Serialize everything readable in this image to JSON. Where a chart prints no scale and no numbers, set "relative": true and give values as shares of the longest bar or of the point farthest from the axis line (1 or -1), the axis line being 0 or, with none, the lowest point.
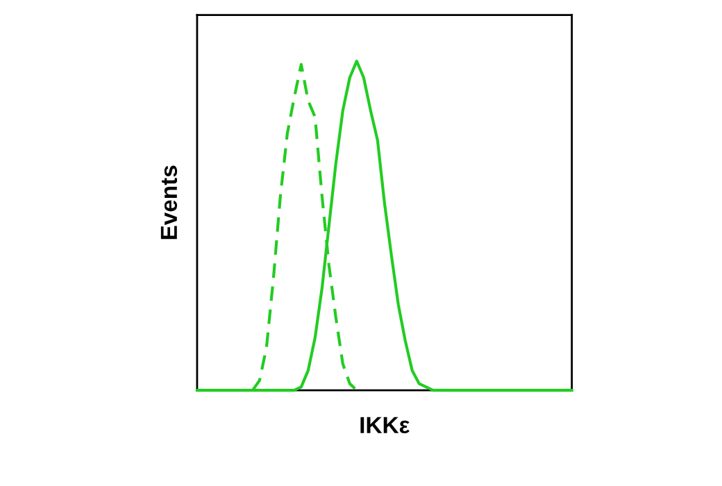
{
  "chart_data": {
    "type": "line",
    "relative": true,
    "xlabel": "IKKε",
    "ylabel": "Events",
    "grid": false,
    "legend": false,
    "categories": [
      null,
      null,
      null,
      null,
      null,
      null,
      null,
      null,
      null,
      null,
      null,
      null,
      null,
      null,
      null,
      null,
      null,
      null,
      null,
      null,
      null,
      null,
      null,
      null,
      null,
      null,
      null,
      null,
      null,
      null,
      null,
      null,
      null,
      null,
      null,
      null,
      null,
      null,
      null,
      null,
      null,
      null,
      null,
      null,
      null,
      null,
      null,
      null,
      null,
      null,
      null,
      null,
      null,
      null,
      null
    ],
    "series": [
      {
        "color": "#22cc22",
        "line_style": "dashed",
        "values": [
          null,
          null,
          null,
          null,
          null,
          null,
          null,
          null,
          0,
          0.03,
          0.13,
          0.34,
          0.59,
          0.78,
          0.89,
          0.99,
          0.88,
          0.83,
          0.59,
          0.38,
          0.22,
          0.08,
          0.02,
          0,
          null,
          null,
          null,
          null,
          null,
          null,
          null,
          null,
          null,
          null,
          null,
          null,
          null,
          null,
          null,
          null,
          null,
          null,
          null,
          null,
          null,
          null,
          null,
          null,
          null,
          null,
          null,
          null,
          null,
          null,
          null
        ]
      },
      {
        "color": "#22cc22",
        "line_style": "solid",
        "values": [
          0,
          0,
          0,
          0,
          0,
          0,
          0,
          0,
          0,
          0,
          0,
          0,
          0,
          0,
          0,
          0.01,
          0.06,
          0.16,
          0.31,
          0.5,
          0.69,
          0.85,
          0.95,
          1.0,
          0.95,
          0.85,
          0.76,
          0.57,
          0.41,
          0.26,
          0.15,
          0.06,
          0.02,
          0.01,
          0,
          0,
          0,
          0,
          0,
          0,
          0,
          0,
          0,
          0,
          0,
          0,
          0,
          0,
          0,
          0,
          0,
          0,
          0,
          0,
          0
        ]
      }
    ]
  }
}
